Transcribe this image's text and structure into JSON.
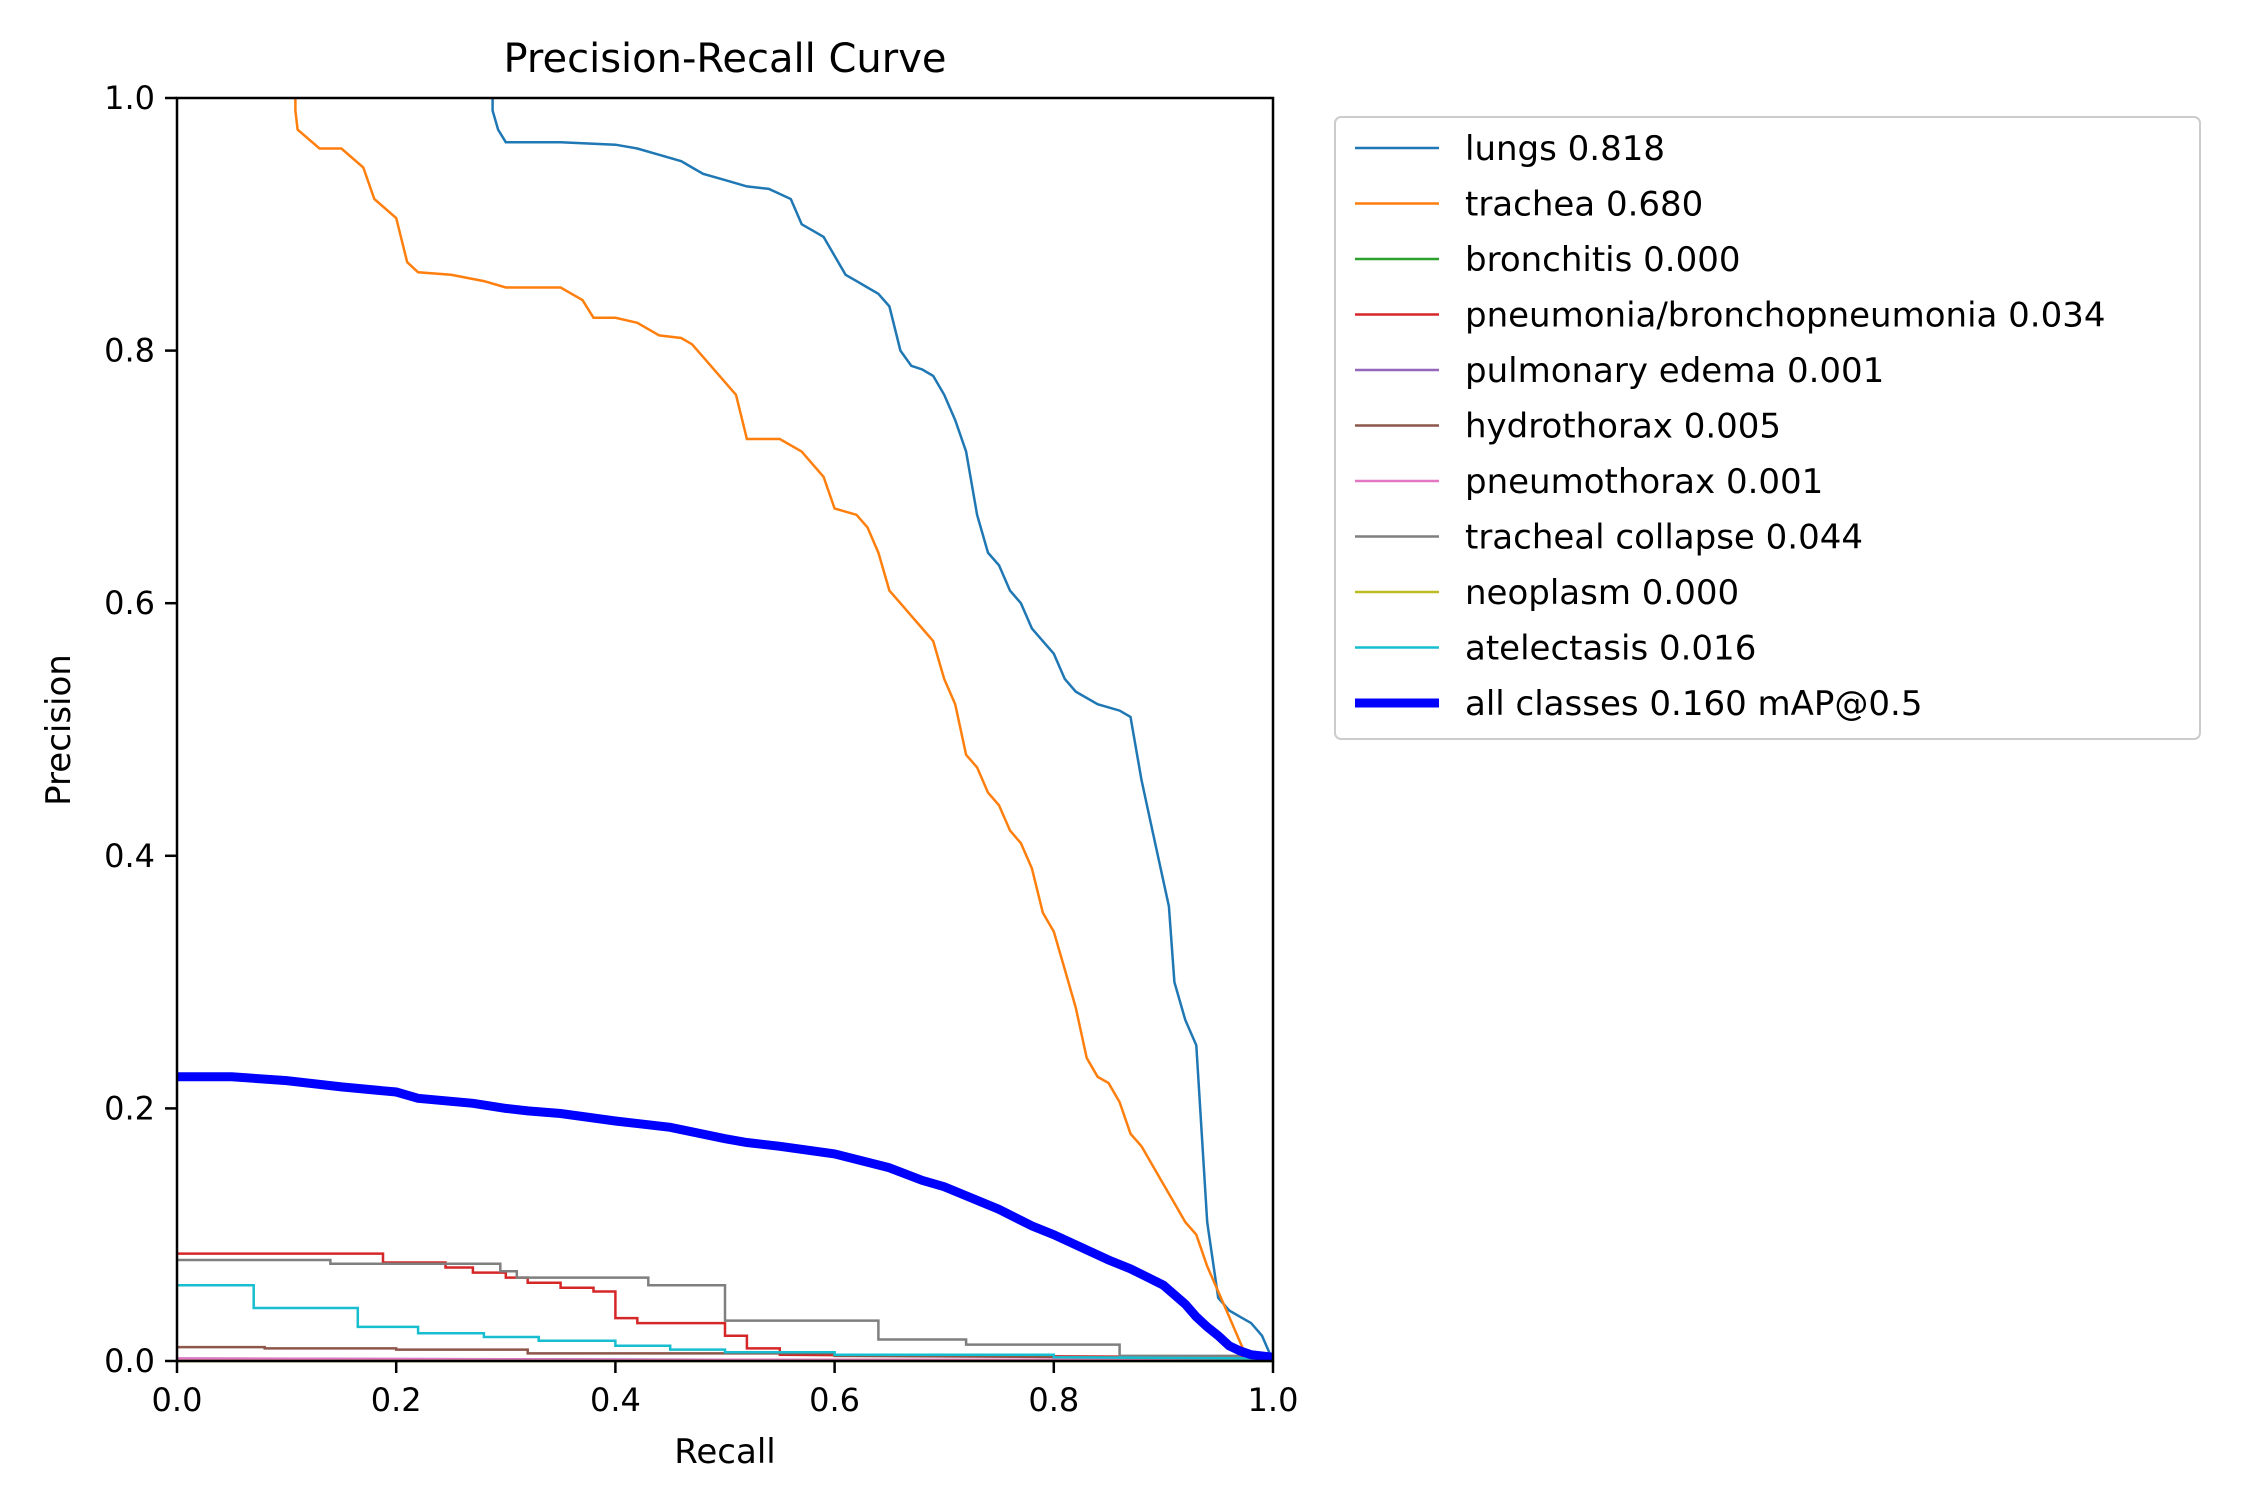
{
  "chart_data": {
    "type": "line",
    "title": "Precision-Recall Curve",
    "xlabel": "Recall",
    "ylabel": "Precision",
    "xlim": [
      0,
      1
    ],
    "ylim": [
      0,
      1
    ],
    "xticks": [
      "0.0",
      "0.2",
      "0.4",
      "0.6",
      "0.8",
      "1.0"
    ],
    "yticks": [
      "0.0",
      "0.2",
      "0.4",
      "0.6",
      "0.8",
      "1.0"
    ],
    "grid": false,
    "legend_position": "outside-upper-right",
    "series": [
      {
        "name": "lungs 0.818",
        "color": "#1f77b4",
        "width": "thin",
        "x": [
          0.288,
          0.288,
          0.293,
          0.3,
          0.31,
          0.35,
          0.4,
          0.42,
          0.44,
          0.46,
          0.47,
          0.48,
          0.5,
          0.52,
          0.54,
          0.56,
          0.57,
          0.58,
          0.59,
          0.6,
          0.61,
          0.62,
          0.63,
          0.64,
          0.65,
          0.66,
          0.67,
          0.68,
          0.69,
          0.7,
          0.71,
          0.72,
          0.73,
          0.74,
          0.75,
          0.76,
          0.77,
          0.78,
          0.79,
          0.8,
          0.81,
          0.82,
          0.84,
          0.86,
          0.87,
          0.88,
          0.89,
          0.9,
          0.905,
          0.91,
          0.92,
          0.93,
          0.94,
          0.95,
          0.96,
          0.97,
          0.98,
          0.99,
          1.0
        ],
        "y": [
          1.0,
          0.99,
          0.975,
          0.965,
          0.965,
          0.965,
          0.963,
          0.96,
          0.955,
          0.95,
          0.945,
          0.94,
          0.935,
          0.93,
          0.928,
          0.92,
          0.9,
          0.895,
          0.89,
          0.875,
          0.86,
          0.855,
          0.85,
          0.845,
          0.835,
          0.8,
          0.788,
          0.785,
          0.78,
          0.765,
          0.745,
          0.72,
          0.67,
          0.64,
          0.63,
          0.61,
          0.6,
          0.58,
          0.57,
          0.56,
          0.54,
          0.53,
          0.52,
          0.515,
          0.51,
          0.46,
          0.42,
          0.38,
          0.36,
          0.3,
          0.27,
          0.25,
          0.11,
          0.05,
          0.04,
          0.035,
          0.03,
          0.02,
          0.0
        ]
      },
      {
        "name": "trachea 0.680",
        "color": "#ff7f0e",
        "width": "thin",
        "x": [
          0.108,
          0.108,
          0.11,
          0.13,
          0.15,
          0.17,
          0.18,
          0.2,
          0.21,
          0.22,
          0.25,
          0.28,
          0.3,
          0.35,
          0.36,
          0.37,
          0.38,
          0.4,
          0.42,
          0.44,
          0.46,
          0.47,
          0.48,
          0.5,
          0.51,
          0.52,
          0.55,
          0.57,
          0.58,
          0.59,
          0.6,
          0.62,
          0.63,
          0.64,
          0.65,
          0.66,
          0.67,
          0.68,
          0.69,
          0.7,
          0.71,
          0.72,
          0.73,
          0.74,
          0.75,
          0.76,
          0.77,
          0.78,
          0.79,
          0.8,
          0.81,
          0.82,
          0.83,
          0.84,
          0.85,
          0.86,
          0.87,
          0.88,
          0.9,
          0.91,
          0.92,
          0.93,
          0.94,
          0.95,
          0.96,
          0.965,
          0.97,
          0.975
        ],
        "y": [
          1.0,
          0.99,
          0.975,
          0.96,
          0.96,
          0.945,
          0.92,
          0.905,
          0.87,
          0.862,
          0.86,
          0.855,
          0.85,
          0.85,
          0.845,
          0.84,
          0.826,
          0.826,
          0.822,
          0.812,
          0.81,
          0.805,
          0.795,
          0.775,
          0.765,
          0.73,
          0.73,
          0.72,
          0.71,
          0.7,
          0.675,
          0.67,
          0.66,
          0.64,
          0.61,
          0.6,
          0.59,
          0.58,
          0.57,
          0.54,
          0.52,
          0.48,
          0.47,
          0.45,
          0.44,
          0.42,
          0.41,
          0.39,
          0.355,
          0.34,
          0.31,
          0.28,
          0.24,
          0.225,
          0.22,
          0.205,
          0.18,
          0.17,
          0.14,
          0.125,
          0.11,
          0.1,
          0.075,
          0.055,
          0.035,
          0.025,
          0.015,
          0.005
        ]
      },
      {
        "name": "bronchitis 0.000",
        "color": "#2ca02c",
        "width": "thin",
        "x": [
          0.0,
          1.0
        ],
        "y": [
          0.0,
          0.0
        ]
      },
      {
        "name": "pneumonia/bronchopneumonia 0.034",
        "color": "#d62728",
        "width": "thin",
        "x": [
          0.0,
          0.188,
          0.188,
          0.245,
          0.245,
          0.27,
          0.27,
          0.3,
          0.3,
          0.32,
          0.32,
          0.35,
          0.35,
          0.38,
          0.38,
          0.4,
          0.4,
          0.42,
          0.42,
          0.5,
          0.5,
          0.52,
          0.52,
          0.55,
          0.55,
          0.7,
          1.0
        ],
        "y": [
          0.085,
          0.085,
          0.078,
          0.078,
          0.074,
          0.074,
          0.07,
          0.07,
          0.066,
          0.066,
          0.062,
          0.062,
          0.058,
          0.058,
          0.055,
          0.055,
          0.034,
          0.034,
          0.03,
          0.03,
          0.02,
          0.02,
          0.01,
          0.01,
          0.005,
          0.004,
          0.003
        ]
      },
      {
        "name": "pulmonary edema 0.001",
        "color": "#9467bd",
        "width": "thin",
        "x": [
          0.0,
          0.5,
          1.0
        ],
        "y": [
          0.002,
          0.001,
          0.0
        ]
      },
      {
        "name": "hydrothorax 0.005",
        "color": "#8c564b",
        "width": "thin",
        "x": [
          0.0,
          0.08,
          0.08,
          0.2,
          0.2,
          0.32,
          0.32,
          0.6,
          0.6,
          0.85,
          1.0
        ],
        "y": [
          0.011,
          0.011,
          0.01,
          0.01,
          0.009,
          0.009,
          0.006,
          0.006,
          0.004,
          0.003,
          0.002
        ]
      },
      {
        "name": "pneumothorax 0.001",
        "color": "#e377c2",
        "width": "thin",
        "x": [
          0.0,
          0.4,
          1.0
        ],
        "y": [
          0.002,
          0.001,
          0.001
        ]
      },
      {
        "name": "tracheal collapse 0.044",
        "color": "#7f7f7f",
        "width": "thin",
        "x": [
          0.0,
          0.14,
          0.14,
          0.295,
          0.295,
          0.31,
          0.31,
          0.43,
          0.43,
          0.5,
          0.5,
          0.64,
          0.64,
          0.72,
          0.72,
          0.86,
          0.86,
          0.97,
          0.97,
          1.0
        ],
        "y": [
          0.08,
          0.08,
          0.077,
          0.077,
          0.071,
          0.071,
          0.066,
          0.066,
          0.06,
          0.06,
          0.032,
          0.032,
          0.017,
          0.017,
          0.013,
          0.013,
          0.004,
          0.004,
          0.002,
          0.002
        ]
      },
      {
        "name": "neoplasm 0.000",
        "color": "#bcbd22",
        "width": "thin",
        "x": [
          0.0,
          1.0
        ],
        "y": [
          0.0,
          0.0
        ]
      },
      {
        "name": "atelectasis 0.016",
        "color": "#17becf",
        "width": "thin",
        "x": [
          0.0,
          0.07,
          0.07,
          0.165,
          0.165,
          0.22,
          0.22,
          0.28,
          0.28,
          0.33,
          0.33,
          0.4,
          0.4,
          0.45,
          0.45,
          0.5,
          0.5,
          0.6,
          0.6,
          0.8,
          0.8,
          1.0
        ],
        "y": [
          0.06,
          0.06,
          0.042,
          0.042,
          0.027,
          0.027,
          0.022,
          0.022,
          0.019,
          0.019,
          0.016,
          0.016,
          0.012,
          0.012,
          0.009,
          0.009,
          0.007,
          0.007,
          0.005,
          0.005,
          0.003,
          0.002
        ]
      },
      {
        "name": "all classes 0.160 mAP@0.5",
        "color": "#0000ff",
        "width": "thick",
        "x": [
          0.0,
          0.05,
          0.1,
          0.15,
          0.2,
          0.22,
          0.27,
          0.3,
          0.32,
          0.35,
          0.4,
          0.45,
          0.5,
          0.52,
          0.55,
          0.6,
          0.65,
          0.68,
          0.7,
          0.75,
          0.78,
          0.8,
          0.82,
          0.85,
          0.87,
          0.9,
          0.92,
          0.93,
          0.94,
          0.95,
          0.96,
          0.97,
          0.98,
          1.0
        ],
        "y": [
          0.225,
          0.225,
          0.222,
          0.217,
          0.213,
          0.208,
          0.204,
          0.2,
          0.198,
          0.196,
          0.19,
          0.185,
          0.176,
          0.173,
          0.17,
          0.164,
          0.153,
          0.143,
          0.138,
          0.12,
          0.107,
          0.1,
          0.092,
          0.08,
          0.073,
          0.06,
          0.045,
          0.035,
          0.027,
          0.02,
          0.012,
          0.008,
          0.005,
          0.003
        ]
      }
    ]
  }
}
